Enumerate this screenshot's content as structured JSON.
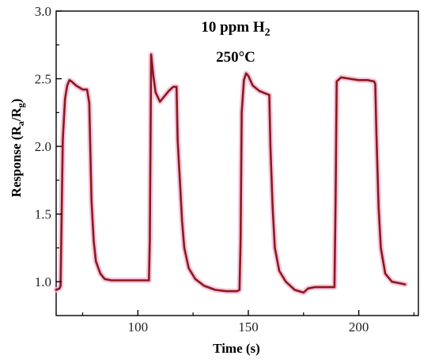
{
  "chart_data": {
    "type": "line",
    "title": "",
    "xlabel": "Time (s)",
    "ylabel_main": "Response (R",
    "ylabel_sub_a": "a",
    "ylabel_sep": "/R",
    "ylabel_sub_g": "g",
    "ylabel_end": ")",
    "xlim": [
      63,
      227
    ],
    "ylim": [
      0.75,
      3.0
    ],
    "xticks": [
      100,
      150,
      200
    ],
    "yticks": [
      1.0,
      1.5,
      2.0,
      2.5,
      3.0
    ],
    "xtick_labels": [
      "100",
      "150",
      "200"
    ],
    "ytick_labels": [
      "1.0",
      "1.5",
      "2.0",
      "2.5",
      "3.0"
    ],
    "grid": false,
    "annotations": {
      "concentration_prefix": "10 ppm H",
      "concentration_sub": "2",
      "temperature": "250°C"
    },
    "colors": {
      "line": "#8b1a1a",
      "halo": "#f2b8d8",
      "axis": "#000000"
    },
    "series": [
      {
        "x": [
          63,
          64.5,
          65,
          66,
          67,
          68,
          69,
          70,
          72,
          75,
          77,
          78,
          78.3,
          79,
          80,
          81,
          83,
          85,
          88,
          92,
          96,
          100,
          104,
          105,
          105.4,
          106,
          107,
          108,
          110,
          112,
          114,
          116,
          117.5,
          118,
          119,
          120,
          121,
          123,
          126,
          130,
          135,
          140,
          145,
          146,
          146.5,
          147,
          148,
          149,
          150,
          152,
          155,
          158,
          159.5,
          160,
          161,
          162,
          164,
          167,
          171,
          175,
          177,
          180,
          185,
          188,
          189,
          189.5,
          190,
          192,
          196,
          200,
          204,
          207,
          207.5,
          208,
          209,
          210,
          212,
          215,
          218,
          221
        ],
        "y": [
          0.94,
          0.95,
          0.97,
          2.05,
          2.35,
          2.45,
          2.49,
          2.48,
          2.45,
          2.42,
          2.42,
          2.32,
          2.1,
          1.6,
          1.3,
          1.15,
          1.06,
          1.02,
          1.01,
          1.01,
          1.01,
          1.01,
          1.01,
          1.01,
          1.3,
          2.68,
          2.52,
          2.4,
          2.33,
          2.37,
          2.41,
          2.44,
          2.44,
          2.05,
          1.75,
          1.45,
          1.25,
          1.1,
          1.02,
          0.97,
          0.94,
          0.93,
          0.93,
          0.94,
          1.3,
          2.25,
          2.49,
          2.54,
          2.52,
          2.45,
          2.41,
          2.39,
          2.38,
          2.0,
          1.55,
          1.25,
          1.08,
          1.0,
          0.94,
          0.92,
          0.95,
          0.96,
          0.96,
          0.96,
          0.96,
          1.6,
          2.48,
          2.51,
          2.5,
          2.49,
          2.49,
          2.48,
          2.46,
          2.1,
          1.55,
          1.25,
          1.06,
          1.0,
          0.99,
          0.98
        ]
      }
    ]
  }
}
